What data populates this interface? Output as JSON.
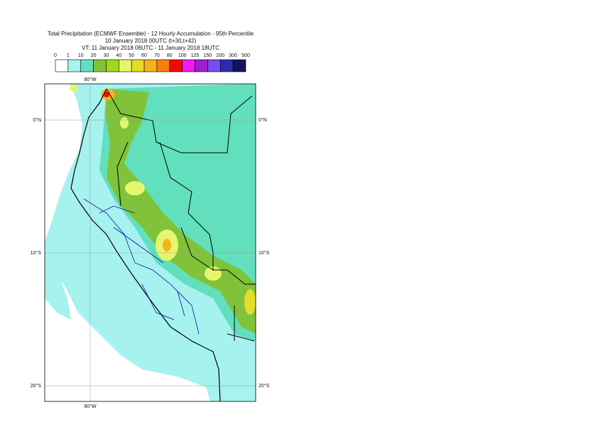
{
  "header": {
    "title": "Total Precipitation (ECMWF Ensemble) - 12 Hourly Accumulation - 95th Percentile",
    "line2": "10 January 2018 00UTC (t+30,t+42)",
    "line3": "VT: 11 January 2018 06UTC - 11 January 2018 18UTC"
  },
  "legend": {
    "labels": [
      "0",
      "1",
      "10",
      "20",
      "30",
      "40",
      "50",
      "60",
      "70",
      "80",
      "100",
      "125",
      "150",
      "200",
      "300",
      "500"
    ],
    "colors": [
      "#ffffff",
      "#a6f2ef",
      "#62dfbd",
      "#80c23a",
      "#a0d81e",
      "#e6f66c",
      "#e4da2a",
      "#f5b21e",
      "#fa7d12",
      "#ee0a0a",
      "#f31af3",
      "#a01dd0",
      "#7a4cf0",
      "#2b2cb0",
      "#14145a"
    ]
  },
  "map": {
    "lon_label": "80°W",
    "lat_labels": [
      "0°N",
      "10°S",
      "20°S"
    ]
  }
}
